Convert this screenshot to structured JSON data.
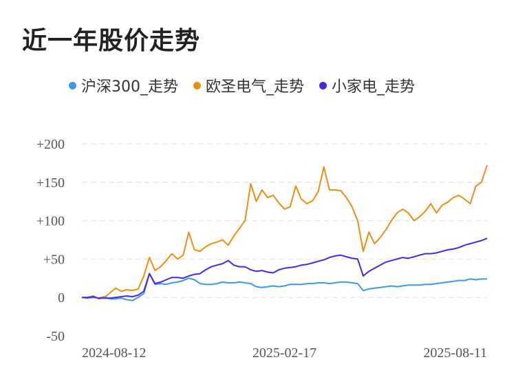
{
  "title": "近一年股价走势",
  "chart_data": {
    "type": "line",
    "title": "近一年股价走势",
    "xlabel": "",
    "ylabel": "",
    "x_ticks": [
      "2024-08-12",
      "2025-02-17",
      "2025-08-11"
    ],
    "y_ticks": [
      "+200",
      "+150",
      "+100",
      "+50",
      "0",
      "-50"
    ],
    "ylim": [
      -50,
      200
    ],
    "grid": true,
    "legend_position": "top",
    "series": [
      {
        "name": "沪深300_走势",
        "color": "#3b97e8",
        "values": [
          0,
          -1,
          0,
          -1,
          1,
          -2,
          -2,
          -1,
          -3,
          -4,
          0,
          5,
          31,
          17,
          18,
          17,
          19,
          20,
          22,
          25,
          23,
          18,
          17,
          17,
          18,
          20,
          19,
          19,
          20,
          19,
          18,
          14,
          13,
          14,
          15,
          14,
          15,
          17,
          17,
          17,
          18,
          18,
          19,
          19,
          18,
          19,
          20,
          20,
          19,
          18,
          9,
          11,
          12,
          13,
          14,
          15,
          14,
          15,
          16,
          16,
          16,
          17,
          17,
          18,
          19,
          20,
          21,
          22,
          22,
          24,
          23,
          24,
          24
        ]
      },
      {
        "name": "欧圣电气_走势",
        "color": "#ec8d11",
        "values": [
          0,
          0,
          2,
          -2,
          0,
          6,
          12,
          8,
          10,
          9,
          11,
          28,
          52,
          35,
          40,
          48,
          57,
          50,
          55,
          85,
          62,
          60,
          66,
          70,
          72,
          75,
          68,
          80,
          90,
          100,
          148,
          125,
          140,
          130,
          133,
          123,
          115,
          118,
          145,
          128,
          122,
          126,
          138,
          170,
          140,
          140,
          139,
          130,
          118,
          100,
          60,
          85,
          70,
          78,
          88,
          100,
          110,
          115,
          110,
          100,
          105,
          112,
          122,
          110,
          120,
          124,
          130,
          133,
          128,
          122,
          145,
          150,
          172
        ]
      },
      {
        "name": "小家电_走势",
        "color": "#4a25e3",
        "values": [
          0,
          0,
          1,
          -1,
          -1,
          -1,
          0,
          1,
          2,
          1,
          3,
          8,
          31,
          18,
          20,
          23,
          26,
          26,
          25,
          28,
          30,
          31,
          36,
          40,
          42,
          44,
          48,
          42,
          40,
          40,
          36,
          34,
          35,
          33,
          32,
          36,
          38,
          39,
          40,
          42,
          43,
          45,
          47,
          49,
          52,
          54,
          55,
          53,
          51,
          50,
          28,
          34,
          38,
          42,
          46,
          48,
          50,
          52,
          51,
          53,
          55,
          57,
          57,
          58,
          60,
          62,
          63,
          65,
          68,
          70,
          72,
          74,
          77
        ]
      }
    ]
  }
}
